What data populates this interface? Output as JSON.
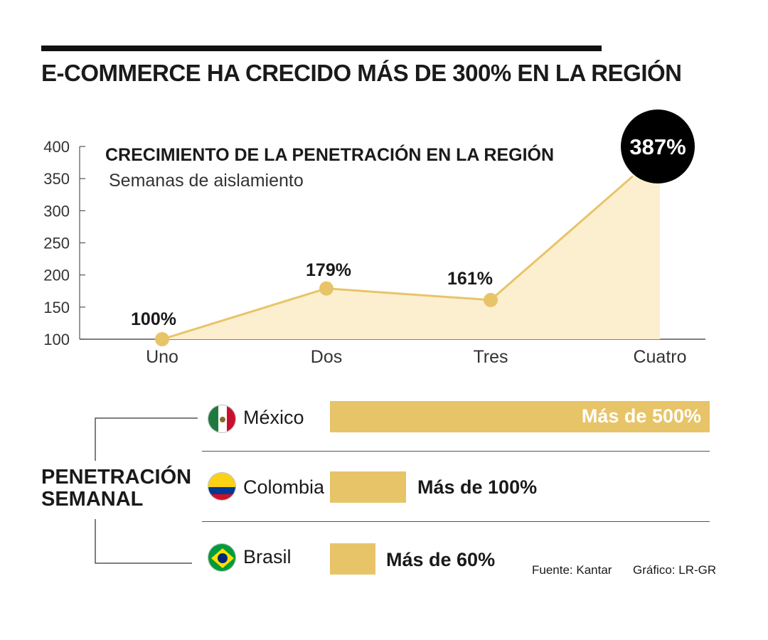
{
  "header": {
    "title": "E-COMMERCE HA CRECIDO MÁS DE 300% EN LA REGIÓN"
  },
  "chart_data": [
    {
      "type": "area",
      "title": "CRECIMIENTO DE LA PENETRACIÓN EN LA REGIÓN",
      "subtitle": "Semanas de aislamiento",
      "categories": [
        "Uno",
        "Dos",
        "Tres",
        "Cuatro"
      ],
      "values": [
        100,
        179,
        161,
        387
      ],
      "data_labels": [
        "100%",
        "179%",
        "161%",
        "387%"
      ],
      "yticks": [
        "400",
        "350",
        "300",
        "250",
        "200",
        "150",
        "100"
      ],
      "ylim": [
        100,
        400
      ],
      "color": "#e8c468",
      "fill_color": "#fcefcf",
      "highlight_color": "#000000"
    },
    {
      "type": "bar",
      "title": "PENETRACIÓN SEMANAL",
      "categories": [
        "México",
        "Colombia",
        "Brasil"
      ],
      "values": [
        500,
        100,
        60
      ],
      "data_labels": [
        "Más de 500%",
        "Más de 100%",
        "Más de 60%"
      ],
      "color": "#e8c468"
    }
  ],
  "bars_section": {
    "label_line1": "PENETRACIÓN",
    "label_line2": "SEMANAL",
    "rows": [
      {
        "country": "México",
        "flag": "mexico-flag",
        "value_label": "Más de 500%"
      },
      {
        "country": "Colombia",
        "flag": "colombia-flag",
        "value_label": "Más de 100%"
      },
      {
        "country": "Brasil",
        "flag": "brazil-flag",
        "value_label": "Más de 60%"
      }
    ]
  },
  "footer": {
    "source": "Fuente: Kantar",
    "credit": "Gráfico: LR-GR"
  }
}
